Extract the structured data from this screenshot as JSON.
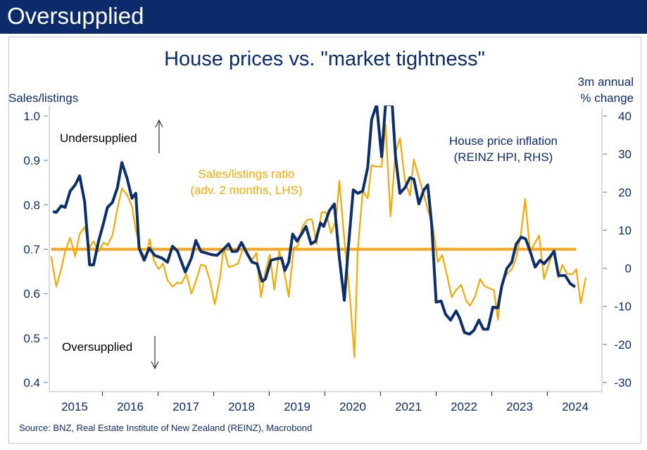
{
  "header": {
    "title": "Oversupplied"
  },
  "chart_data": {
    "type": "line",
    "title": "House prices vs. \"market tightness\"",
    "left_axis": {
      "label": "Sales/listings",
      "ylim": [
        0.4,
        1.0
      ],
      "ticks": [
        "1.0",
        "0.9",
        "0.8",
        "0.7",
        "0.6",
        "0.5",
        "0.4"
      ]
    },
    "right_axis": {
      "label_line1": "3m annual",
      "label_line2": "% change",
      "ylim": [
        -30,
        40
      ],
      "ticks": [
        "40",
        "30",
        "20",
        "10",
        "0",
        "-10",
        "-20",
        "-30"
      ]
    },
    "x_axis": {
      "ticks": [
        "2015",
        "2016",
        "2017",
        "2018",
        "2019",
        "2020",
        "2021",
        "2022",
        "2023",
        "2024"
      ]
    },
    "grid": false,
    "annotations": {
      "undersupplied": "Undersupplied",
      "oversupplied": "Oversupplied"
    },
    "reference_line": {
      "axis": "left",
      "value": 0.7,
      "color": "#f5a31a"
    },
    "series": [
      {
        "name": "Sales/listings ratio",
        "name_line2": "(adv. 2 months, LHS)",
        "axis": "left",
        "color": "#f5a800",
        "points": [
          [
            2015.08,
            0.684
          ],
          [
            2015.17,
            0.616
          ],
          [
            2015.26,
            0.655
          ],
          [
            2015.33,
            0.696
          ],
          [
            2015.42,
            0.726
          ],
          [
            2015.51,
            0.684
          ],
          [
            2015.59,
            0.734
          ],
          [
            2015.68,
            0.75
          ],
          [
            2015.77,
            0.704
          ],
          [
            2015.84,
            0.718
          ],
          [
            2015.93,
            0.695
          ],
          [
            2016.02,
            0.715
          ],
          [
            2016.09,
            0.709
          ],
          [
            2016.18,
            0.731
          ],
          [
            2016.27,
            0.791
          ],
          [
            2016.35,
            0.837
          ],
          [
            2016.44,
            0.823
          ],
          [
            2016.53,
            0.797
          ],
          [
            2016.6,
            0.744
          ],
          [
            2016.69,
            0.696
          ],
          [
            2016.78,
            0.68
          ],
          [
            2016.85,
            0.723
          ],
          [
            2016.92,
            0.676
          ],
          [
            2017.01,
            0.655
          ],
          [
            2017.09,
            0.668
          ],
          [
            2017.17,
            0.631
          ],
          [
            2017.26,
            0.616
          ],
          [
            2017.35,
            0.625
          ],
          [
            2017.42,
            0.623
          ],
          [
            2017.51,
            0.644
          ],
          [
            2017.6,
            0.6
          ],
          [
            2017.68,
            0.628
          ],
          [
            2017.77,
            0.665
          ],
          [
            2017.85,
            0.663
          ],
          [
            2017.93,
            0.631
          ],
          [
            2018.02,
            0.576
          ],
          [
            2018.11,
            0.633
          ],
          [
            2018.18,
            0.703
          ],
          [
            2018.27,
            0.66
          ],
          [
            2018.36,
            0.663
          ],
          [
            2018.44,
            0.668
          ],
          [
            2018.53,
            0.703
          ],
          [
            2018.61,
            0.692
          ],
          [
            2018.69,
            0.676
          ],
          [
            2018.77,
            0.692
          ],
          [
            2018.85,
            0.592
          ],
          [
            2018.93,
            0.649
          ],
          [
            2019.01,
            0.688
          ],
          [
            2019.09,
            0.609
          ],
          [
            2019.18,
            0.696
          ],
          [
            2019.26,
            0.655
          ],
          [
            2019.35,
            0.593
          ],
          [
            2019.44,
            0.703
          ],
          [
            2019.51,
            0.707
          ],
          [
            2019.6,
            0.752
          ],
          [
            2019.69,
            0.767
          ],
          [
            2019.77,
            0.767
          ],
          [
            2019.85,
            0.712
          ],
          [
            2019.94,
            0.783
          ],
          [
            2020.02,
            0.783
          ],
          [
            2020.11,
            0.736
          ],
          [
            2020.2,
            0.766
          ],
          [
            2020.26,
            0.854
          ],
          [
            2020.35,
            0.723
          ],
          [
            2020.45,
            0.592
          ],
          [
            2020.53,
            0.457
          ],
          [
            2020.59,
            0.696
          ],
          [
            2020.68,
            0.831
          ],
          [
            2020.77,
            0.815
          ],
          [
            2020.84,
            0.889
          ],
          [
            2020.93,
            0.886
          ],
          [
            2021.02,
            0.886
          ],
          [
            2021.09,
            0.981
          ],
          [
            2021.18,
            0.774
          ],
          [
            2021.27,
            0.918
          ],
          [
            2021.35,
            0.95
          ],
          [
            2021.44,
            0.853
          ],
          [
            2021.53,
            0.821
          ],
          [
            2021.6,
            0.902
          ],
          [
            2021.69,
            0.861
          ],
          [
            2021.78,
            0.823
          ],
          [
            2021.85,
            0.79
          ],
          [
            2021.94,
            0.752
          ],
          [
            2022.03,
            0.671
          ],
          [
            2022.11,
            0.687
          ],
          [
            2022.2,
            0.639
          ],
          [
            2022.28,
            0.592
          ],
          [
            2022.36,
            0.608
          ],
          [
            2022.45,
            0.62
          ],
          [
            2022.54,
            0.584
          ],
          [
            2022.61,
            0.573
          ],
          [
            2022.7,
            0.593
          ],
          [
            2022.79,
            0.633
          ],
          [
            2022.87,
            0.617
          ],
          [
            2022.96,
            0.612
          ],
          [
            2023.04,
            0.608
          ],
          [
            2023.11,
            0.541
          ],
          [
            2023.18,
            0.623
          ],
          [
            2023.27,
            0.644
          ],
          [
            2023.36,
            0.655
          ],
          [
            2023.44,
            0.68
          ],
          [
            2023.53,
            0.739
          ],
          [
            2023.6,
            0.813
          ],
          [
            2023.69,
            0.696
          ],
          [
            2023.77,
            0.712
          ],
          [
            2023.85,
            0.731
          ],
          [
            2023.94,
            0.633
          ],
          [
            2024.02,
            0.665
          ],
          [
            2024.11,
            0.696
          ],
          [
            2024.2,
            0.636
          ],
          [
            2024.27,
            0.665
          ],
          [
            2024.36,
            0.644
          ],
          [
            2024.45,
            0.644
          ],
          [
            2024.52,
            0.655
          ],
          [
            2024.6,
            0.578
          ],
          [
            2024.69,
            0.636
          ]
        ]
      },
      {
        "name": "House price inflation",
        "name_line2": "(REINZ HPI, RHS)",
        "axis": "right",
        "color": "#0c2f6b",
        "points": [
          [
            2015.11,
            14.9
          ],
          [
            2015.17,
            14.7
          ],
          [
            2015.26,
            16.4
          ],
          [
            2015.33,
            16.0
          ],
          [
            2015.42,
            20.3
          ],
          [
            2015.51,
            21.9
          ],
          [
            2015.59,
            24.3
          ],
          [
            2015.68,
            17.5
          ],
          [
            2015.77,
            0.9
          ],
          [
            2015.84,
            0.9
          ],
          [
            2015.93,
            7.1
          ],
          [
            2016.02,
            11.9
          ],
          [
            2016.09,
            16.0
          ],
          [
            2016.18,
            17.3
          ],
          [
            2016.27,
            21.2
          ],
          [
            2016.35,
            27.8
          ],
          [
            2016.44,
            23.8
          ],
          [
            2016.53,
            18.4
          ],
          [
            2016.6,
            19.7
          ],
          [
            2016.66,
            5.3
          ],
          [
            2016.75,
            2.1
          ],
          [
            2016.84,
            5.3
          ],
          [
            2016.94,
            3.4
          ],
          [
            2017.07,
            2.7
          ],
          [
            2017.17,
            1.6
          ],
          [
            2017.26,
            5.8
          ],
          [
            2017.35,
            4.5
          ],
          [
            2017.49,
            -1.0
          ],
          [
            2017.6,
            2.7
          ],
          [
            2017.68,
            7.3
          ],
          [
            2017.77,
            4.4
          ],
          [
            2017.87,
            4.0
          ],
          [
            2017.96,
            3.6
          ],
          [
            2018.06,
            3.4
          ],
          [
            2018.17,
            4.9
          ],
          [
            2018.27,
            6.4
          ],
          [
            2018.33,
            4.4
          ],
          [
            2018.42,
            4.5
          ],
          [
            2018.5,
            6.8
          ],
          [
            2018.61,
            3.6
          ],
          [
            2018.69,
            1.6
          ],
          [
            2018.78,
            1.2
          ],
          [
            2018.87,
            -3.4
          ],
          [
            2018.93,
            -2.8
          ],
          [
            2019.03,
            2.1
          ],
          [
            2019.13,
            2.5
          ],
          [
            2019.22,
            2.7
          ],
          [
            2019.28,
            -0.6
          ],
          [
            2019.35,
            1.6
          ],
          [
            2019.42,
            9.0
          ],
          [
            2019.5,
            7.1
          ],
          [
            2019.58,
            9.0
          ],
          [
            2019.66,
            11.0
          ],
          [
            2019.75,
            6.4
          ],
          [
            2019.83,
            7.1
          ],
          [
            2019.92,
            11.9
          ],
          [
            2019.98,
            11.0
          ],
          [
            2020.08,
            15.1
          ],
          [
            2020.17,
            16.9
          ],
          [
            2020.26,
            2.7
          ],
          [
            2020.35,
            -8.4
          ],
          [
            2020.42,
            5.3
          ],
          [
            2020.51,
            20.6
          ],
          [
            2020.59,
            19.7
          ],
          [
            2020.68,
            20.3
          ],
          [
            2020.77,
            26.5
          ],
          [
            2020.84,
            39.1
          ],
          [
            2020.93,
            43
          ],
          [
            2021.02,
            29.3
          ],
          [
            2021.09,
            43
          ],
          [
            2021.21,
            43
          ],
          [
            2021.27,
            29.3
          ],
          [
            2021.35,
            19.7
          ],
          [
            2021.44,
            21.2
          ],
          [
            2021.53,
            23.8
          ],
          [
            2021.6,
            23.4
          ],
          [
            2021.69,
            16.9
          ],
          [
            2021.78,
            20.6
          ],
          [
            2021.85,
            21.9
          ],
          [
            2021.92,
            11.4
          ],
          [
            2022.0,
            -8.9
          ],
          [
            2022.09,
            -8.6
          ],
          [
            2022.17,
            -12.1
          ],
          [
            2022.26,
            -13.6
          ],
          [
            2022.36,
            -11.2
          ],
          [
            2022.42,
            -13.0
          ],
          [
            2022.51,
            -16.9
          ],
          [
            2022.6,
            -17.3
          ],
          [
            2022.68,
            -16.3
          ],
          [
            2022.77,
            -13.6
          ],
          [
            2022.85,
            -16.0
          ],
          [
            2022.93,
            -16.0
          ],
          [
            2023.02,
            -10.2
          ],
          [
            2023.11,
            -10.4
          ],
          [
            2023.18,
            -4.7
          ],
          [
            2023.27,
            -0.1
          ],
          [
            2023.36,
            1.6
          ],
          [
            2023.44,
            6.4
          ],
          [
            2023.53,
            8.2
          ],
          [
            2023.61,
            7.7
          ],
          [
            2023.69,
            4.5
          ],
          [
            2023.78,
            0.3
          ],
          [
            2023.87,
            2.1
          ],
          [
            2023.94,
            1.2
          ],
          [
            2024.03,
            2.7
          ],
          [
            2024.12,
            4.5
          ],
          [
            2024.2,
            -1.9
          ],
          [
            2024.32,
            -1.9
          ],
          [
            2024.41,
            -4.0
          ],
          [
            2024.5,
            -4.9
          ]
        ]
      }
    ],
    "source": "Source: BNZ, Real Estate Institute of New Zealand (REINZ), Macrobond"
  }
}
